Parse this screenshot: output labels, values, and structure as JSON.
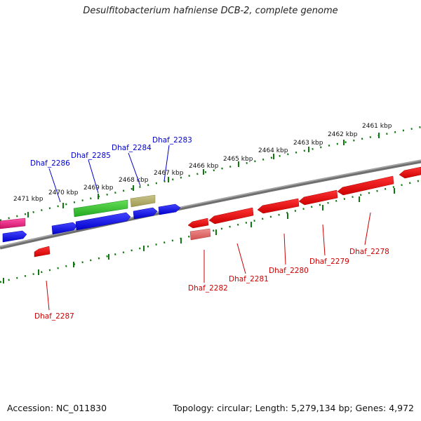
{
  "title": "Desulfitobacterium hafniense DCB-2, complete genome",
  "footer": {
    "accession": "Accession: NC_011830",
    "summary": "Topology: circular; Length: 5,279,134 bp; Genes: 4,972"
  },
  "kbp_ticks": [
    {
      "label": "2461 kbp"
    },
    {
      "label": "2462 kbp"
    },
    {
      "label": "2463 kbp"
    },
    {
      "label": "2464 kbp"
    },
    {
      "label": "2465 kbp"
    },
    {
      "label": "2466 kbp"
    },
    {
      "label": "2467 kbp"
    },
    {
      "label": "2468 kbp"
    },
    {
      "label": "2469 kbp"
    },
    {
      "label": "2470 kbp"
    },
    {
      "label": "2471 kbp"
    }
  ],
  "gene_labels": {
    "Dhaf_2283": "Dhaf_2283",
    "Dhaf_2284": "Dhaf_2284",
    "Dhaf_2285": "Dhaf_2285",
    "Dhaf_2286": "Dhaf_2286",
    "Dhaf_2287": "Dhaf_2287",
    "Dhaf_2282": "Dhaf_2282",
    "Dhaf_2281": "Dhaf_2281",
    "Dhaf_2280": "Dhaf_2280",
    "Dhaf_2279": "Dhaf_2279",
    "Dhaf_2278": "Dhaf_2278"
  },
  "colors": {
    "backbone": "#808080",
    "forward_cds": "#0000ee",
    "reverse_cds": "#ee0000",
    "rna": "#33bb33",
    "other": "#b0aa60",
    "pink": "#e0207a",
    "label_blue": "#0000cc",
    "label_red": "#cc0000",
    "tick": "#117711"
  }
}
